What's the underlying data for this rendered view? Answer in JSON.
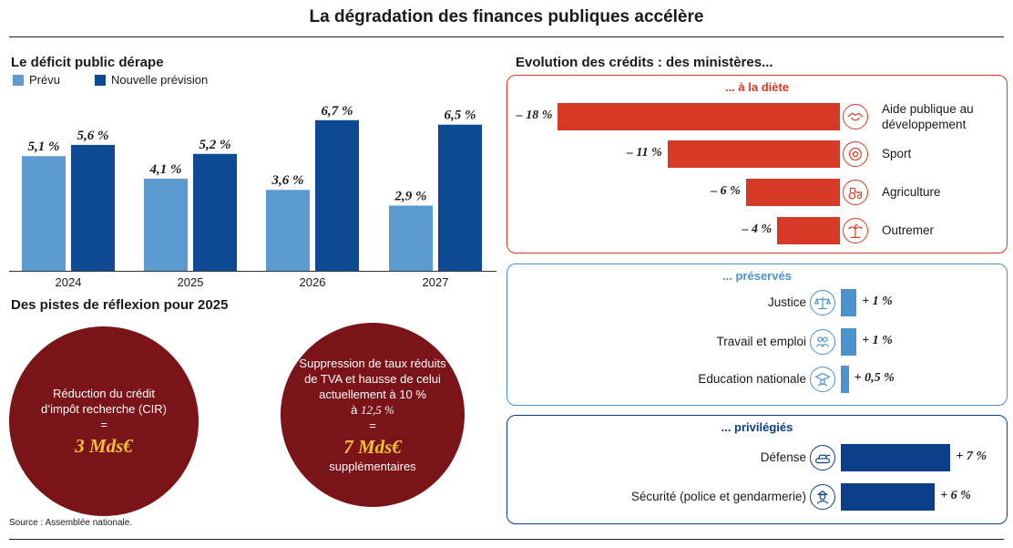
{
  "title": "La dégradation des finances publiques accélère",
  "deficit": {
    "heading": "Le déficit public dérape",
    "legend": [
      "Prévu",
      "Nouvelle prévision"
    ]
  },
  "colors": {
    "prevu": "#5b9bd0",
    "nouvelle": "#0e4a94",
    "red": "#d63a26",
    "lightblue": "#4a93cf",
    "darkblue": "#0c3f8a",
    "maroon": "#7b1418",
    "gold": "#f2c230"
  },
  "chart_data": [
    {
      "type": "bar",
      "title": "Le déficit public dérape",
      "categories": [
        "2024",
        "2025",
        "2026",
        "2027"
      ],
      "series": [
        {
          "name": "Prévu",
          "values": [
            5.1,
            4.1,
            3.6,
            2.9
          ],
          "labels": [
            "5,1 %",
            "4,1 %",
            "3,6 %",
            "2,9 %"
          ]
        },
        {
          "name": "Nouvelle prévision",
          "values": [
            5.6,
            5.2,
            6.7,
            6.5
          ],
          "labels": [
            "5,6 %",
            "5,2 %",
            "6,7 %",
            "6,5 %"
          ]
        }
      ],
      "ylim": [
        0,
        7.3
      ]
    },
    {
      "type": "bar",
      "title": "Evolution des crédits : des ministères...",
      "groups": [
        {
          "name": "... à la diète",
          "items": [
            {
              "label": "Aide publique au développement",
              "value": -18,
              "text": "– 18 %",
              "icon": "handshake-icon"
            },
            {
              "label": "Sport",
              "value": -11,
              "text": "– 11 %",
              "icon": "ball-icon"
            },
            {
              "label": "Agriculture",
              "value": -6,
              "text": "– 6 %",
              "icon": "tractor-icon"
            },
            {
              "label": "Outremer",
              "value": -4,
              "text": "– 4 %",
              "icon": "palm-tree-icon"
            }
          ]
        },
        {
          "name": "... préservés",
          "items": [
            {
              "label": "Justice",
              "value": 1,
              "text": "+ 1 %",
              "icon": "scales-icon"
            },
            {
              "label": "Travail et emploi",
              "value": 1,
              "text": "+ 1 %",
              "icon": "people-icon"
            },
            {
              "label": "Education nationale",
              "value": 0.5,
              "text": "+ 0,5 %",
              "icon": "graduate-icon"
            }
          ]
        },
        {
          "name": "... privilégiés",
          "items": [
            {
              "label": "Défense",
              "value": 7,
              "text": "+ 7 %",
              "icon": "tank-icon"
            },
            {
              "label": "Sécurité (police et gendarmerie)",
              "value": 6,
              "text": "+ 6 %",
              "icon": "police-icon"
            }
          ]
        }
      ]
    }
  ],
  "pistes": {
    "heading": "Des pistes de réflexion pour 2025",
    "left": {
      "text": "Réduction du crédit d’impôt recherche (CIR)",
      "eq": "=",
      "amount": "3 Mds€"
    },
    "right": {
      "text": "Suppression de taux réduits de TVA et hausse de celui actuellement à 10 %",
      "arrow": "à",
      "rate": "12,5 %",
      "eq": "=",
      "amount": "7 Mds€",
      "suffix": "supplémentaires"
    }
  },
  "credits": {
    "heading": "Evolution des crédits : des ministères..."
  },
  "source": "Source : Assemblée nationale."
}
